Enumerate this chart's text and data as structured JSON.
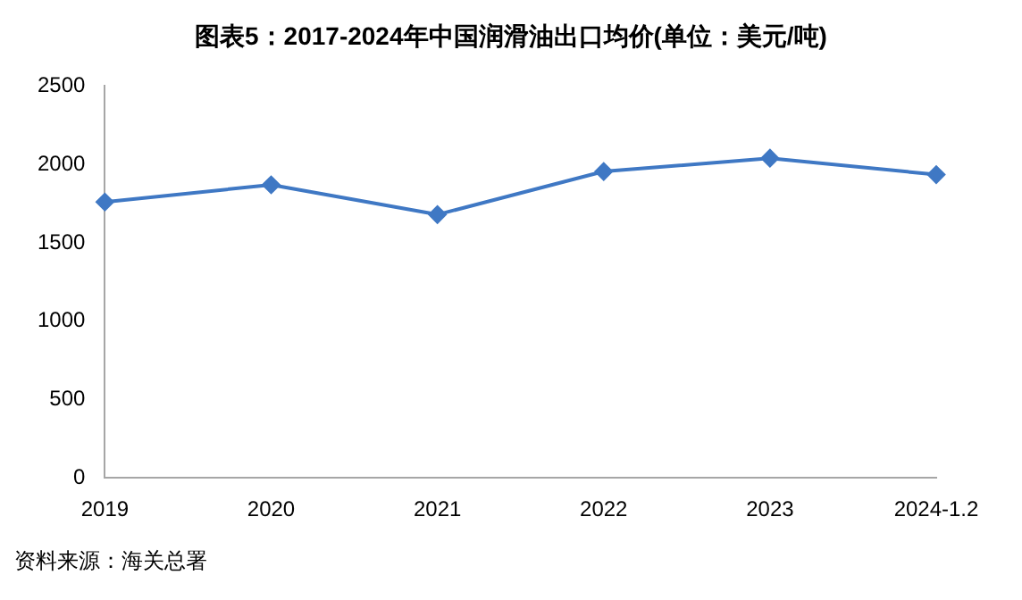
{
  "chart_data": {
    "type": "line",
    "title": "图表5：2017-2024年中国润滑油出口均价(单位：美元/吨)",
    "categories": [
      "2019",
      "2020",
      "2021",
      "2022",
      "2023",
      "2024-1.2"
    ],
    "series": [
      {
        "color": "#3f78c4",
        "values": [
          1760,
          1870,
          1680,
          1955,
          2040,
          1935
        ]
      }
    ],
    "ylim": [
      0,
      2500
    ],
    "yticks": [
      0,
      500,
      1000,
      1500,
      2000,
      2500
    ],
    "grid": false,
    "legend": false,
    "marker": "diamond",
    "line_style": "solid",
    "annotations": [
      "资料来源：海关总署"
    ]
  }
}
